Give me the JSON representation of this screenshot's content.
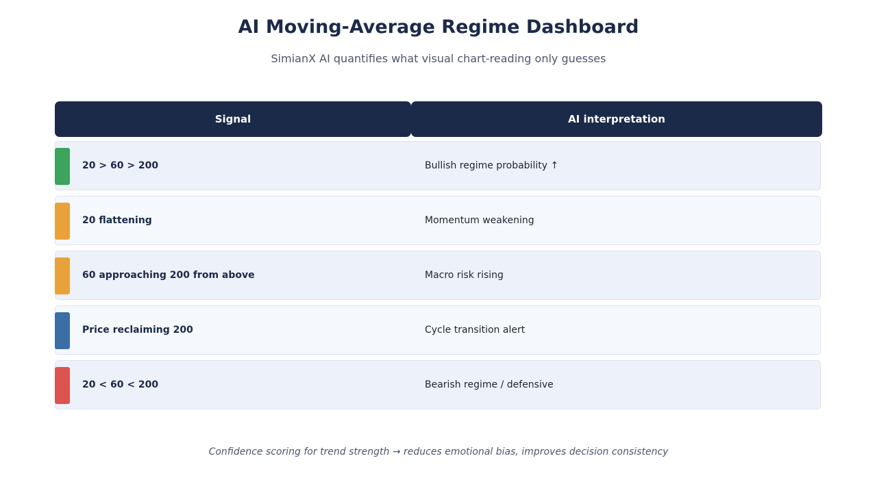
{
  "title": "AI Moving-Average Regime Dashboard",
  "subtitle": "SimianX AI quantifies what visual chart-reading only guesses",
  "table": {
    "headers": {
      "signal": "Signal",
      "interpretation": "AI interpretation"
    },
    "rows": [
      {
        "signal": "20 > 60 > 200",
        "interpretation": "Bullish regime probability ↑",
        "accent_color": "#3da35d"
      },
      {
        "signal": "20 flattening",
        "interpretation": "Momentum weakening",
        "accent_color": "#e9a23b"
      },
      {
        "signal": "60 approaching 200 from above",
        "interpretation": "Macro risk rising",
        "accent_color": "#e9a23b"
      },
      {
        "signal": "Price reclaiming 200",
        "interpretation": "Cycle transition alert",
        "accent_color": "#3b6ea5"
      },
      {
        "signal": "20 < 60 < 200",
        "interpretation": "Bearish regime / defensive",
        "accent_color": "#dc5350"
      }
    ]
  },
  "footer": "Confidence scoring for trend strength → reduces emotional bias, improves decision consistency",
  "colors": {
    "header_bg": "#1c2a4a",
    "title_text": "#1c2a4a",
    "row_odd_bg": "#edf1f9",
    "row_even_bg": "#f5f8fd"
  }
}
